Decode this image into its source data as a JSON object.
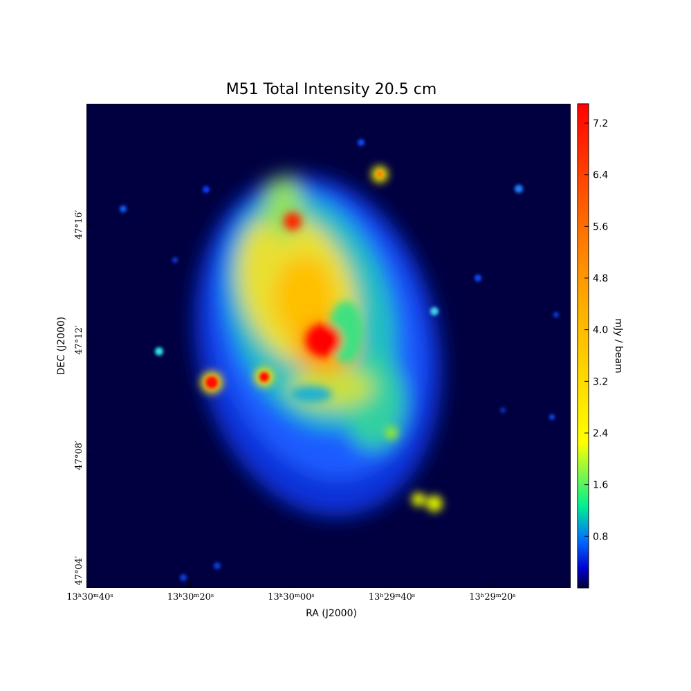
{
  "chart_data": {
    "type": "image",
    "title": "M51 Total Intensity 20.5 cm",
    "xlabel": "RA (J2000)",
    "ylabel": "DEC (J2000)",
    "x_tick_labels": [
      "13ʰ30ᵐ40ˢ",
      "13ʰ30ᵐ20ˢ",
      "13ʰ30ᵐ00ˢ",
      "13ʰ29ᵐ40ˢ",
      "13ʰ29ᵐ20ˢ"
    ],
    "y_tick_labels": [
      "47°04′",
      "47°08′",
      "47°12′",
      "47°16′"
    ],
    "colorbar": {
      "label": "mJy / beam",
      "lim": [
        0,
        7.5
      ],
      "ticks": [
        0.8,
        1.6,
        2.4,
        3.2,
        4.0,
        4.8,
        5.6,
        6.4,
        7.2
      ],
      "tick_labels": [
        "0.8",
        "1.6",
        "2.4",
        "3.2",
        "4.0",
        "4.8",
        "5.6",
        "6.4",
        "7.2"
      ]
    }
  }
}
